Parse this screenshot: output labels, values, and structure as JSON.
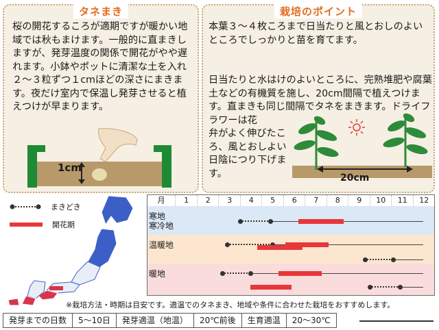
{
  "sowing": {
    "title": "タネまき",
    "text": "桜の開花するころが適期ですが暖かい地域では秋もまけます。一般的に直まきしますが、発芽温度の関係で開花がやや遅れます。小鉢やポットに清潔な土を入れ２～３粒ずつ１cmほどの深さにまきます。夜だけ室内で保温し発芽させると植えつけが早まります。",
    "depth_label": "1cm"
  },
  "care": {
    "title": "栽培のポイント",
    "text1": "本葉３～４枚ころまで日当たりと風とおしのよいところでしっかりと苗を育てます。",
    "text2": "日当たりと水はけのよいところに、完熟堆肥や腐葉土などの有機質を施し、20cm間隔で植えつけます。直まきも同じ間隔でタネをまきます。ドライフラワーは花",
    "text3": "弁がよく伸びたころ、風とおしよい日陰につり下げます。",
    "spacing_label": "20cm"
  },
  "legend": {
    "sowing_label": "まきどき",
    "bloom_label": "開花期"
  },
  "schedule": {
    "month_header": "月",
    "months": [
      "1",
      "2",
      "3",
      "4",
      "5",
      "6",
      "7",
      "8",
      "9",
      "10",
      "11",
      "12"
    ],
    "regions": [
      {
        "label": "寒地\n寒冷地",
        "color": "#dbe8f6"
      },
      {
        "label": "温暖地",
        "color": "#fde6cf"
      },
      {
        "label": "暖地",
        "color": "#fbdcdc"
      }
    ],
    "rows": [
      {
        "region": 0,
        "sow_start_month": 4.0,
        "sow_end_month": 5.4,
        "line_end_month": 12.5,
        "bloom_start_month": 6.7,
        "bloom_end_month": 8.8
      },
      {
        "region": 1,
        "sow_start_month": 3.4,
        "sow_end_month": 5.5,
        "line_end_month": 12.5,
        "bloom_start_month": 6.1,
        "bloom_end_month": 8.1
      },
      {
        "region": 1,
        "sow_start_month": 9.8,
        "sow_end_month": 11.1,
        "line_end_month": 12.5,
        "bloom_start_month": null,
        "bloom_end_month": null
      },
      {
        "region": 1,
        "sow_start_month": null,
        "sow_end_month": null,
        "line_end_month": null,
        "bloom_start_month": 4.8,
        "bloom_end_month": 6.9
      },
      {
        "region": 2,
        "sow_start_month": 3.2,
        "sow_end_month": 4.5,
        "line_end_month": 12.5,
        "bloom_start_month": 5.8,
        "bloom_end_month": 7.8
      },
      {
        "region": 2,
        "sow_start_month": 10.0,
        "sow_end_month": 11.4,
        "line_end_month": 12.5,
        "bloom_start_month": 4.5,
        "bloom_end_month": 6.4
      }
    ],
    "note": "※栽培方法・時期は目安です。適温でのタネまき、地域や条件に合わせた栽培をおすすめします。"
  },
  "info": {
    "germ_days_label": "発芽までの日数",
    "germ_days_value": "5～10日",
    "germ_temp_label": "発芽適温（地温）",
    "germ_temp_value": "20℃前後",
    "grow_temp_label": "生育適温",
    "grow_temp_value": "20～30℃"
  },
  "colors": {
    "accent": "#e26b1b",
    "pot_green": "#1f8a35",
    "soil": "#b8996a",
    "bloom_red": "#e8373b",
    "map_cold": "#3b5fc6",
    "map_warm": "#e8eef8",
    "map_hot": "#d8344a"
  }
}
